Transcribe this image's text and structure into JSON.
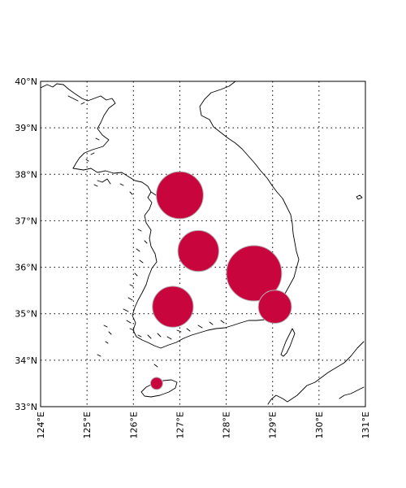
{
  "map": {
    "lon_range": [
      124,
      131
    ],
    "lat_range": [
      33,
      40
    ],
    "x_tick_labels": [
      "124°E",
      "125°E",
      "126°E",
      "127°E",
      "128°E",
      "129°E",
      "130°E",
      "131°E"
    ],
    "y_tick_labels": [
      "33°N",
      "34°N",
      "35°N",
      "36°N",
      "37°N",
      "38°N",
      "39°N",
      "40°N"
    ],
    "grid": true,
    "marker_color": "#c8063d",
    "marker_edge_color": "#b2aeb2",
    "markers": [
      {
        "lon": 127.0,
        "lat": 37.55,
        "size": 0.85
      },
      {
        "lon": 127.4,
        "lat": 36.35,
        "size": 0.74
      },
      {
        "lon": 128.6,
        "lat": 35.87,
        "size": 1.0
      },
      {
        "lon": 126.85,
        "lat": 35.15,
        "size": 0.74
      },
      {
        "lon": 129.05,
        "lat": 35.15,
        "size": 0.6
      },
      {
        "lon": 126.5,
        "lat": 33.5,
        "size": 0.22
      }
    ]
  }
}
